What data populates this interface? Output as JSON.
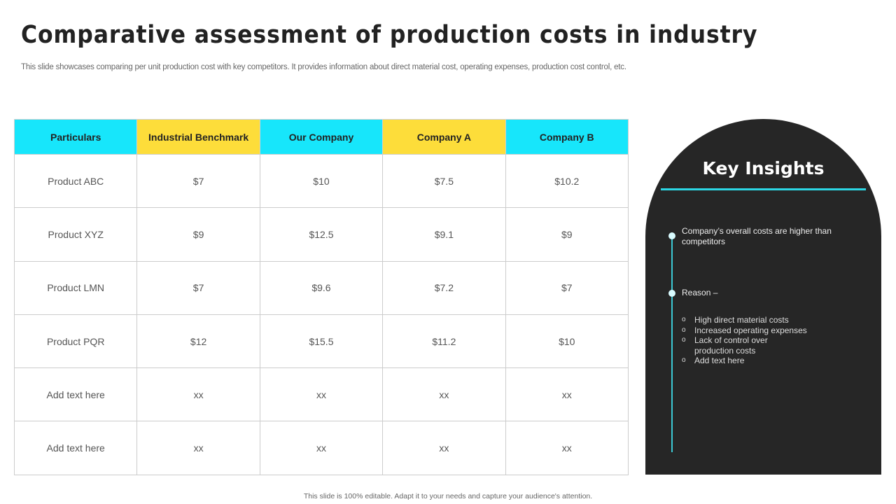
{
  "title": "Comparative assessment of production costs in industry",
  "subtitle": "This slide showcases comparing per unit production cost with key competitors. It provides information about direct material cost, operating expenses, production cost control, etc.",
  "colors": {
    "cyan": "#17e6fb",
    "yellow": "#fddd3a",
    "panel": "#262626",
    "accent": "#2cd6e4"
  },
  "table": {
    "headers": [
      "Particulars",
      "Industrial Benchmark",
      "Our Company",
      "Company A",
      "Company B"
    ],
    "rows": [
      [
        "Product ABC",
        "$7",
        "$10",
        "$7.5",
        "$10.2"
      ],
      [
        "Product XYZ",
        "$9",
        "$12.5",
        "$9.1",
        "$9"
      ],
      [
        "Product LMN",
        "$7",
        "$9.6",
        "$7.2",
        "$7"
      ],
      [
        "Product PQR",
        "$12",
        "$15.5",
        "$11.2",
        "$10"
      ],
      [
        "Add text here",
        "xx",
        "xx",
        "xx",
        "xx"
      ],
      [
        "Add text here",
        "xx",
        "xx",
        "xx",
        "xx"
      ]
    ]
  },
  "insights": {
    "title": "Key Insights",
    "point1": "Company’s overall costs are higher than competitors",
    "point2": "Reason –",
    "reasons": [
      "High direct material costs",
      "Increased operating expenses",
      "Lack of control over production costs",
      "Add text here"
    ]
  },
  "footer": "This slide is 100% editable. Adapt it to your needs and capture your audience's attention."
}
